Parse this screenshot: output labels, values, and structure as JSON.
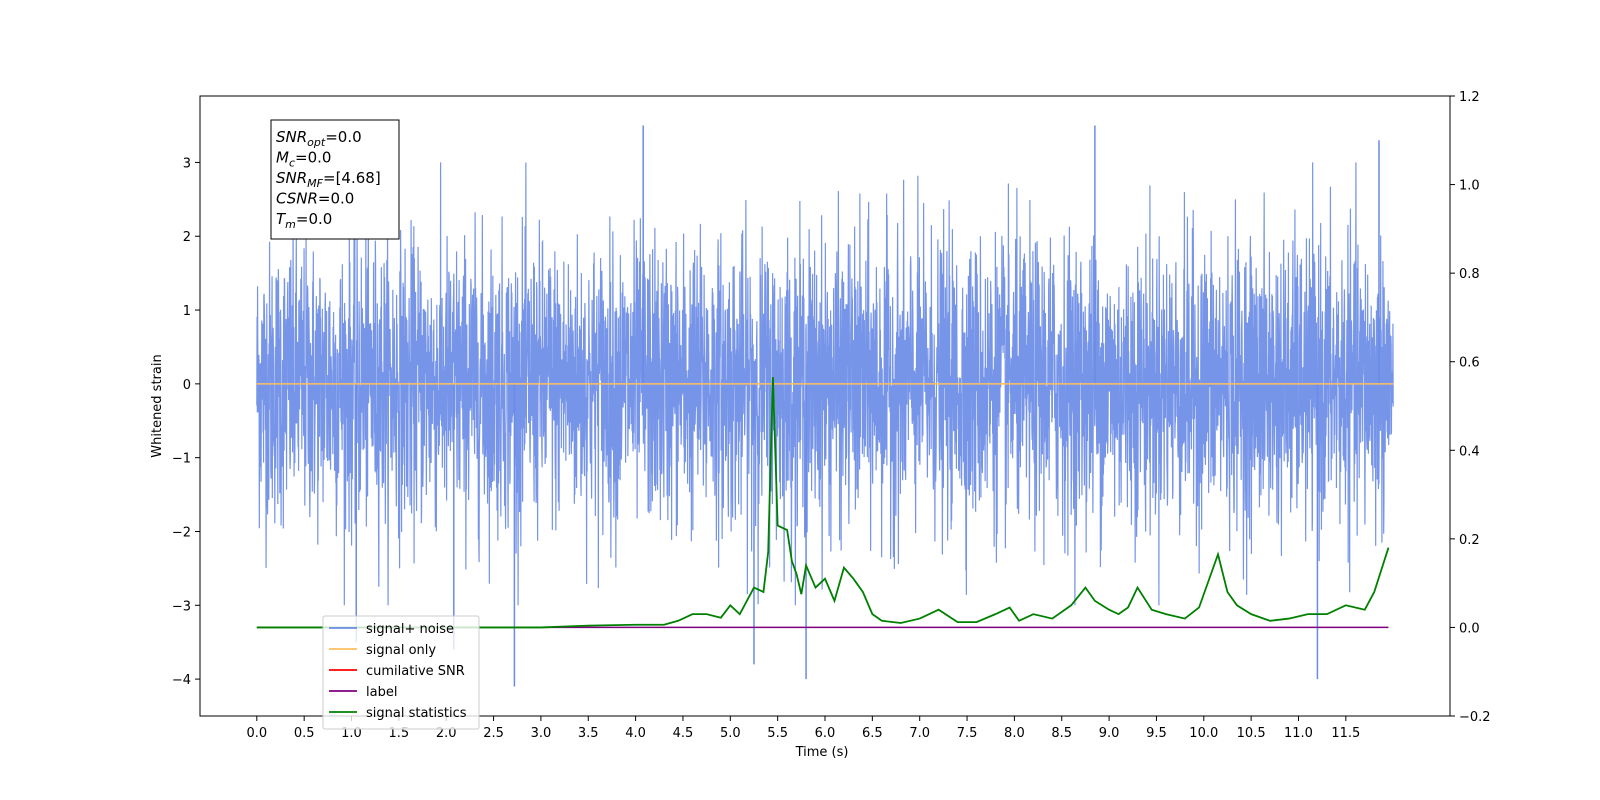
{
  "chart_data": {
    "type": "line",
    "xlabel": "Time (s)",
    "ylabel": "Whitened strain",
    "ylabel_right": "",
    "xlim": [
      -0.6,
      12.6
    ],
    "ylim": [
      -4.5,
      3.9
    ],
    "ylim_right": [
      -0.2,
      1.2
    ],
    "x_ticks": [
      "0.0",
      "0.5",
      "1.0",
      "1.5",
      "2.0",
      "2.5",
      "3.0",
      "3.5",
      "4.0",
      "4.5",
      "5.0",
      "5.5",
      "6.0",
      "6.5",
      "7.0",
      "7.5",
      "8.0",
      "8.5",
      "9.0",
      "9.5",
      "10.0",
      "10.5",
      "11.0",
      "11.5"
    ],
    "y_ticks": [
      "3",
      "2",
      "1",
      "0",
      "−1",
      "−2",
      "−3",
      "−4"
    ],
    "y_right_ticks": [
      "1.2",
      "1.0",
      "0.8",
      "0.6",
      "0.4",
      "0.2",
      "0.0",
      "−0.2"
    ],
    "grid": false,
    "legend_position": "lower-left",
    "stats_box": {
      "lines": [
        {
          "sym": "SNR",
          "sub": "opt",
          "val": "=0.0"
        },
        {
          "sym": "M",
          "sub": "c",
          "val": "=0.0"
        },
        {
          "sym": "SNR",
          "sub": "MF",
          "val": "=[4.68]"
        },
        {
          "sym": "CSNR",
          "sub": "",
          "val": "=0.0"
        },
        {
          "sym": "T",
          "sub": "m",
          "val": "=0.0"
        }
      ]
    },
    "series": [
      {
        "name": "signal+ noise",
        "color": "#6a8be6",
        "axis": "left",
        "description_kind": "noise_band",
        "x_range": [
          0.0,
          12.0
        ],
        "envelope_typical": [
          -2.0,
          2.0
        ],
        "peak_spikes": [
          {
            "x": 4.08,
            "y": 3.5
          },
          {
            "x": 8.85,
            "y": 3.5
          },
          {
            "x": 11.85,
            "y": 3.3
          },
          {
            "x": 5.25,
            "y": -3.8
          },
          {
            "x": 5.8,
            "y": -4.0
          },
          {
            "x": 11.2,
            "y": -4.0
          },
          {
            "x": 2.72,
            "y": -4.1
          },
          {
            "x": 1.05,
            "y": -3.5
          },
          {
            "x": 2.08,
            "y": -3.6
          }
        ]
      },
      {
        "name": "signal only",
        "color": "#ffbf60",
        "axis": "left",
        "x": [
          0.0,
          12.0
        ],
        "y": [
          0.0,
          0.0
        ]
      },
      {
        "name": "cumilative SNR",
        "color": "#ff0000",
        "axis": "left",
        "x": [],
        "y": []
      },
      {
        "name": "label",
        "color": "#7f007f",
        "axis": "right",
        "x": [
          0.0,
          11.95
        ],
        "y": [
          0.0,
          0.0
        ]
      },
      {
        "name": "signal statistics",
        "color": "#008000",
        "axis": "right",
        "x": [
          0.0,
          1.0,
          2.0,
          3.0,
          3.5,
          4.0,
          4.3,
          4.45,
          4.6,
          4.75,
          4.9,
          5.0,
          5.1,
          5.25,
          5.35,
          5.4,
          5.45,
          5.5,
          5.6,
          5.65,
          5.7,
          5.75,
          5.8,
          5.9,
          6.0,
          6.1,
          6.2,
          6.3,
          6.4,
          6.5,
          6.6,
          6.8,
          7.0,
          7.2,
          7.4,
          7.6,
          7.8,
          7.95,
          8.05,
          8.2,
          8.4,
          8.6,
          8.75,
          8.85,
          9.0,
          9.1,
          9.2,
          9.3,
          9.45,
          9.6,
          9.8,
          9.95,
          10.15,
          10.25,
          10.35,
          10.5,
          10.7,
          10.9,
          11.1,
          11.3,
          11.5,
          11.7,
          11.8,
          11.95
        ],
        "y": [
          0.0,
          0.0,
          0.0,
          0.0,
          0.004,
          0.006,
          0.006,
          0.015,
          0.03,
          0.03,
          0.022,
          0.05,
          0.03,
          0.09,
          0.08,
          0.17,
          0.565,
          0.23,
          0.22,
          0.15,
          0.12,
          0.075,
          0.14,
          0.09,
          0.11,
          0.06,
          0.135,
          0.11,
          0.08,
          0.03,
          0.015,
          0.01,
          0.02,
          0.04,
          0.012,
          0.012,
          0.03,
          0.045,
          0.015,
          0.03,
          0.02,
          0.05,
          0.09,
          0.06,
          0.04,
          0.03,
          0.045,
          0.09,
          0.04,
          0.03,
          0.02,
          0.045,
          0.165,
          0.08,
          0.05,
          0.03,
          0.015,
          0.02,
          0.03,
          0.03,
          0.05,
          0.04,
          0.08,
          0.18
        ]
      }
    ]
  }
}
